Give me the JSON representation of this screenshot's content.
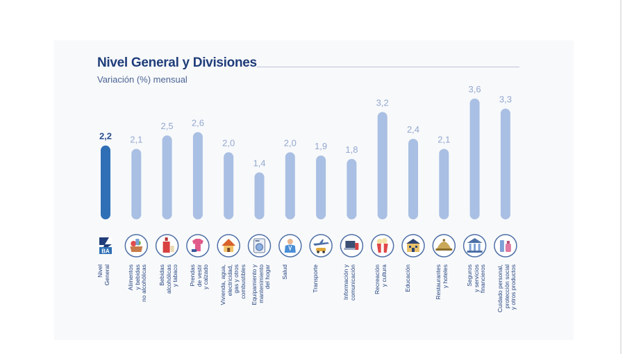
{
  "header": {
    "title": "Nivel General y Divisiones",
    "subtitle": "Variación (%) mensual"
  },
  "colors": {
    "highlight": "#2f6fb5",
    "bar": "#a9bfe3",
    "value_highlight": "#2a4f8f",
    "value": "#93a8cf",
    "title": "#1f3d7a",
    "icon_ring": "#4d6fa6"
  },
  "chart_data": {
    "type": "bar",
    "title": "Nivel General y Divisiones",
    "subtitle": "Variación (%) mensual",
    "xlabel": "",
    "ylabel": "",
    "ylim": [
      0,
      3.6
    ],
    "grid": false,
    "highlight_index": 0,
    "categories": [
      "Nivel\nGeneral",
      "Alimentos\ny bebidas\nno alcohólicas",
      "Bebidas\nalcohólicas\ny tabaco",
      "Prendas\nde vestir\ny calzado",
      "Vivienda, agua,\nelectricidad,\ngas y otros\ncombustibles",
      "Equipamiento y\nmantenimiento\ndel hogar",
      "Salud",
      "Transporte",
      "Información y\ncomunicación",
      "Recreación\ny cultura",
      "Educación",
      "Restaurantes\ny hoteles",
      "Seguros\ny servicios\nfinancieros",
      "Cuidado personal,\nprotección social\ny otros productos"
    ],
    "values": [
      2.2,
      2.1,
      2.5,
      2.6,
      2.0,
      1.4,
      2.0,
      1.9,
      1.8,
      3.2,
      2.4,
      2.1,
      3.6,
      3.3
    ],
    "value_labels": [
      "2,2",
      "2,1",
      "2,5",
      "2,6",
      "2,0",
      "1,4",
      "2,0",
      "1,9",
      "1,8",
      "3,2",
      "2,4",
      "2,1",
      "3,6",
      "3,3"
    ],
    "icons": [
      "ipcba-logo-icon",
      "food-basket-icon",
      "bottle-icon",
      "clothing-icon",
      "house-icon",
      "washing-machine-icon",
      "doctor-icon",
      "airplane-car-icon",
      "laptop-phone-icon",
      "popcorn-icon",
      "school-icon",
      "cloche-icon",
      "bank-icon",
      "personal-care-icon"
    ],
    "logo_text": "BA"
  }
}
